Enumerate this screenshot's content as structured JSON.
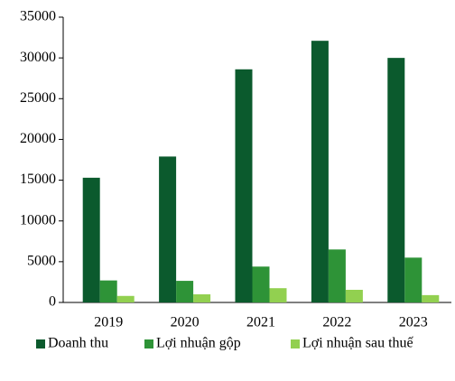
{
  "chart_data": {
    "type": "bar",
    "categories": [
      "2019",
      "2020",
      "2021",
      "2022",
      "2023"
    ],
    "series": [
      {
        "name": "Doanh thu",
        "color": "#0b5a2d",
        "values": [
          15300,
          17900,
          28600,
          32100,
          30000
        ]
      },
      {
        "name": "Lợi nhuận gộp",
        "color": "#2e9337",
        "values": [
          2700,
          2650,
          4400,
          6500,
          5500
        ]
      },
      {
        "name": "Lợi nhuận sau thuế",
        "color": "#92d050",
        "values": [
          800,
          1000,
          1750,
          1550,
          900
        ]
      }
    ],
    "ylim": [
      0,
      35000
    ],
    "yticks": [
      0,
      5000,
      10000,
      15000,
      20000,
      25000,
      30000,
      35000
    ],
    "legend": "bottom"
  }
}
